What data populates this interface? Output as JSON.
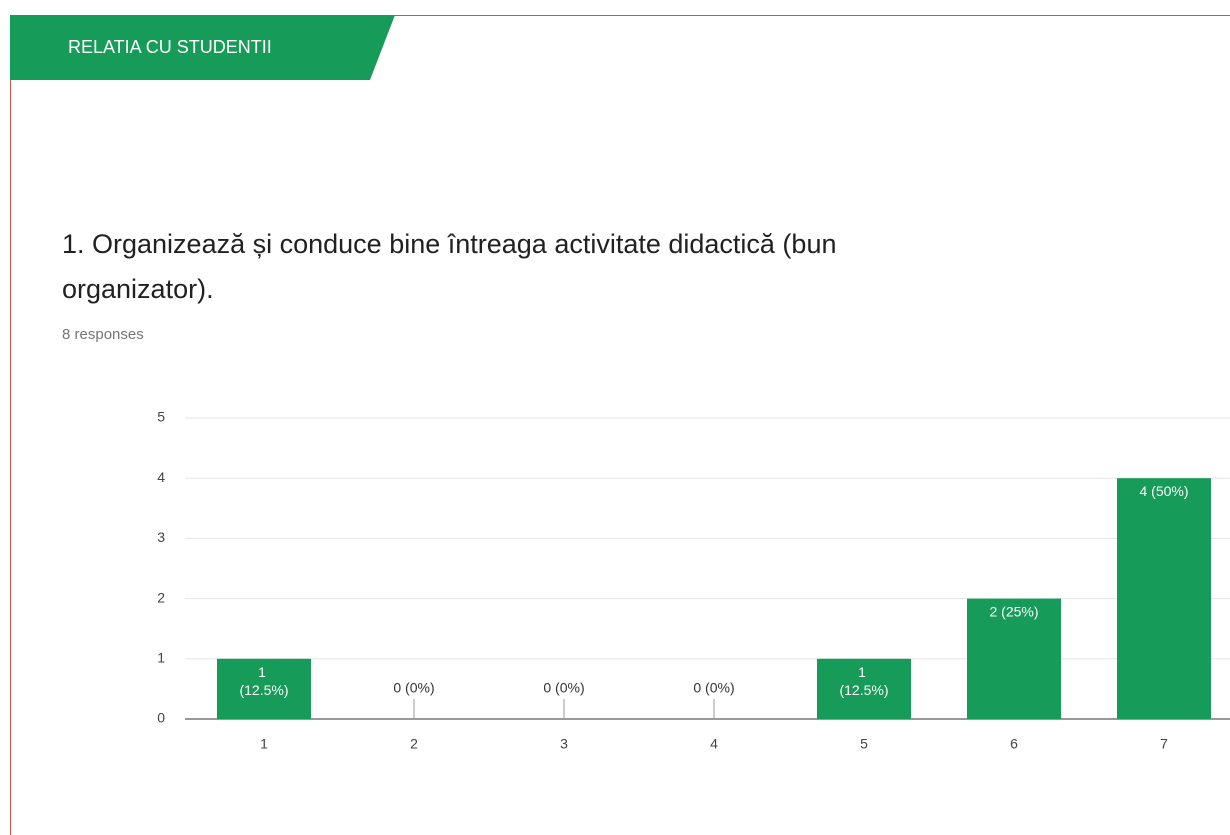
{
  "chart_data": {
    "type": "bar",
    "section": "RELATIA CU STUDENTII",
    "title": "1. Organizează și conduce bine întreaga activitate didactică (bun organizator).",
    "subtitle": "8 responses",
    "categories": [
      "1",
      "2",
      "3",
      "4",
      "5",
      "6",
      "7"
    ],
    "values": [
      1,
      0,
      0,
      0,
      1,
      2,
      4
    ],
    "value_labels": [
      "1 (12.5%)",
      "0 (0%)",
      "0 (0%)",
      "0 (0%)",
      "1 (12.5%)",
      "2 (25%)",
      "4 (50%)"
    ],
    "color": "#169c58",
    "ylim": [
      0,
      5
    ],
    "yticks": [
      0,
      1,
      2,
      3,
      4,
      5
    ],
    "grid": true
  }
}
